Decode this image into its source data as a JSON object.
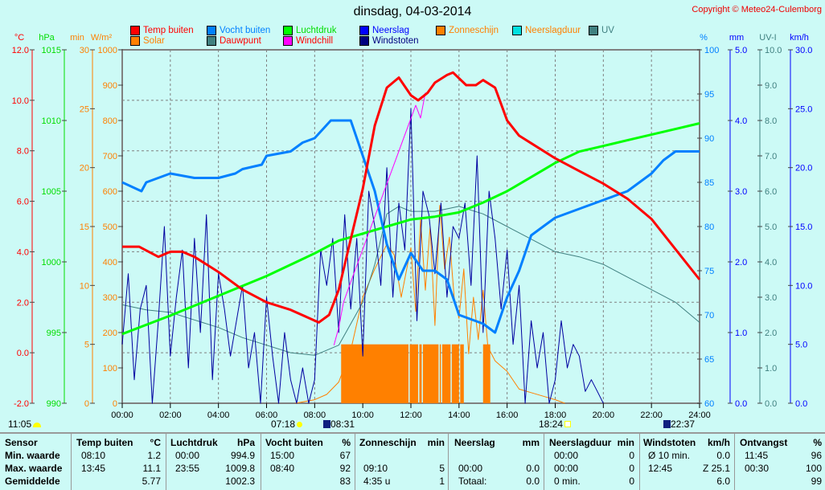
{
  "title": "dinsdag, 04-03-2014",
  "copyright": "Copyright © Meteo24-Culemborg",
  "legend": [
    {
      "label": "Temp buiten",
      "box": "#ff0000",
      "text": "#ff0000"
    },
    {
      "label": "Solar",
      "box": "#ff8000",
      "text": "#ff8000"
    },
    {
      "label": "Vocht buiten",
      "box": "#0080ff",
      "text": "#0080ff"
    },
    {
      "label": "Dauwpunt",
      "box": "#408080",
      "text": "#ff0000"
    },
    {
      "label": "Luchtdruk",
      "box": "#00ff00",
      "text": "#00dd00"
    },
    {
      "label": "Windchill",
      "box": "#ff00ff",
      "text": "#ff0000"
    },
    {
      "label": "Neerslag",
      "box": "#0000ff",
      "text": "#0000ff"
    },
    {
      "label": "Windstoten",
      "box": "#000080",
      "text": "#000080"
    },
    {
      "label": "Zonneschijn",
      "box": "#ff8000",
      "text": "#ff8000"
    },
    {
      "label": "Neerslagduur",
      "box": "#00e0e0",
      "text": "#ff8000"
    },
    {
      "label": "UV",
      "box": "#408080",
      "text": "#408080"
    }
  ],
  "events": {
    "moon_left": "11:05",
    "sunrise": "07:18",
    "moonrise": "08:31",
    "sunset": "18:24",
    "moonset": "22:37"
  },
  "chart_data": {
    "type": "line",
    "x_ticks": [
      "00:00",
      "02:00",
      "04:00",
      "06:00",
      "08:00",
      "10:00",
      "12:00",
      "14:00",
      "16:00",
      "18:00",
      "20:00",
      "22:00",
      "24:00"
    ],
    "xlim": [
      0,
      24
    ],
    "grid": true,
    "axes": [
      {
        "unit": "°C",
        "range": [
          -2,
          12
        ],
        "ticks": [
          "-2.0",
          "0.0",
          "2.0",
          "4.0",
          "6.0",
          "8.0",
          "10.0",
          "12.0"
        ],
        "color": "#ff0000",
        "side": "left"
      },
      {
        "unit": "hPa",
        "range": [
          990,
          1015
        ],
        "ticks": [
          "990",
          "995",
          "1000",
          "1005",
          "1010",
          "1015"
        ],
        "color": "#00dd00",
        "side": "left"
      },
      {
        "unit": "min",
        "range": [
          0,
          30
        ],
        "ticks": [
          "0",
          "5",
          "10",
          "15",
          "20",
          "25",
          "30"
        ],
        "color": "#ff8000",
        "side": "left"
      },
      {
        "unit": "W/m²",
        "range": [
          0,
          1000
        ],
        "ticks": [
          "0",
          "100",
          "200",
          "300",
          "400",
          "500",
          "600",
          "700",
          "800",
          "900",
          "1000"
        ],
        "color": "#ff8000",
        "side": "left"
      },
      {
        "unit": "%",
        "range": [
          60,
          100
        ],
        "ticks": [
          "60",
          "65",
          "70",
          "75",
          "80",
          "85",
          "90",
          "95",
          "100"
        ],
        "color": "#0080ff",
        "side": "right"
      },
      {
        "unit": "mm",
        "range": [
          0,
          5
        ],
        "ticks": [
          "0.0",
          "1.0",
          "2.0",
          "3.0",
          "4.0",
          "5.0"
        ],
        "color": "#0000ff",
        "side": "right"
      },
      {
        "unit": "UV-I",
        "range": [
          0,
          10
        ],
        "ticks": [
          "0.0",
          "1.0",
          "2.0",
          "3.0",
          "4.0",
          "5.0",
          "6.0",
          "7.0",
          "8.0",
          "9.0",
          "10.0"
        ],
        "color": "#408080",
        "side": "right"
      },
      {
        "unit": "km/h",
        "range": [
          0,
          30
        ],
        "ticks": [
          "0.0",
          "5.0",
          "10.0",
          "15.0",
          "20.0",
          "25.0",
          "30.0"
        ],
        "color": "#0000ff",
        "side": "right"
      }
    ],
    "series": [
      {
        "name": "Vocht buiten",
        "axis": 4,
        "color": "#0080ff",
        "width": 3,
        "x": [
          0,
          0.8,
          1,
          2,
          3,
          4,
          4.7,
          5,
          5.8,
          6,
          7,
          7.5,
          8,
          8.67,
          9.5,
          10,
          10.5,
          11,
          11.5,
          12,
          12.5,
          13,
          13.5,
          14,
          15,
          15.5,
          16,
          16.5,
          17,
          17.5,
          18,
          19,
          19.5,
          20,
          21,
          22,
          22.5,
          23,
          24
        ],
        "y": [
          85,
          84,
          85,
          86,
          85.5,
          85.5,
          86,
          86.5,
          87,
          88,
          88.5,
          89.5,
          90,
          92,
          92,
          88,
          84,
          78,
          74,
          77,
          75,
          75,
          74,
          70,
          69,
          68,
          72,
          75,
          79,
          80,
          81,
          82,
          82.5,
          83,
          84,
          86,
          87.5,
          88.5,
          88.5
        ]
      },
      {
        "name": "Luchtdruk",
        "axis": 1,
        "color": "#00ff00",
        "width": 3,
        "x": [
          0,
          2,
          4,
          6,
          8,
          9,
          10,
          11,
          12,
          13,
          14,
          15,
          16,
          17,
          18,
          19,
          20,
          21,
          22,
          23,
          24
        ],
        "y": [
          994.9,
          996.2,
          997.6,
          999.0,
          1000.6,
          1001.5,
          1002.0,
          1002.5,
          1003.0,
          1003.2,
          1003.5,
          1004.2,
          1005.0,
          1006.0,
          1007.0,
          1007.8,
          1008.2,
          1008.6,
          1009.0,
          1009.4,
          1009.8
        ]
      },
      {
        "name": "Temp buiten",
        "axis": 0,
        "color": "#ff0000",
        "width": 3,
        "x": [
          0,
          0.7,
          1.5,
          2,
          2.5,
          3,
          4,
          5,
          6,
          7,
          7.7,
          8.17,
          8.6,
          9,
          9.5,
          10,
          10.5,
          11,
          11.5,
          12,
          12.3,
          12.7,
          13,
          13.5,
          13.75,
          14.3,
          14.7,
          15,
          15.5,
          16,
          16.5,
          17,
          18,
          19,
          20,
          21,
          22,
          23,
          24
        ],
        "y": [
          4.2,
          4.2,
          3.8,
          4.0,
          4.0,
          3.8,
          3.2,
          2.5,
          2.0,
          1.7,
          1.4,
          1.2,
          1.5,
          2.5,
          4.5,
          6.5,
          9.0,
          10.5,
          10.9,
          10.2,
          10.0,
          10.3,
          10.7,
          11.0,
          11.1,
          10.6,
          10.6,
          10.8,
          10.5,
          9.2,
          8.6,
          8.3,
          7.7,
          7.2,
          6.7,
          6.1,
          5.3,
          4.1,
          2.9
        ]
      },
      {
        "name": "Dauwpunt",
        "axis": 0,
        "color": "#408080",
        "width": 1,
        "x": [
          0,
          1,
          2,
          3,
          4,
          5,
          6,
          7,
          8,
          9,
          10,
          10.5,
          11,
          11.5,
          12,
          13,
          14,
          15,
          16,
          17,
          18,
          19,
          20,
          21,
          22,
          23,
          24
        ],
        "y": [
          1.9,
          1.7,
          1.6,
          1.3,
          1.0,
          0.6,
          0.3,
          0.0,
          -0.1,
          0.3,
          2.0,
          3.5,
          5.5,
          5.8,
          5.6,
          5.6,
          5.8,
          5.5,
          5.0,
          4.5,
          4.0,
          3.8,
          3.5,
          3.0,
          2.5,
          2.0,
          1.2
        ]
      },
      {
        "name": "Windchill",
        "axis": 0,
        "color": "#ff00ff",
        "width": 1,
        "x": [
          8.8,
          9.0,
          9.2,
          9.5,
          12.2,
          12.4,
          12.6
        ],
        "y": [
          0.3,
          1.0,
          2.0,
          2.8,
          9.8,
          9.3,
          10.3
        ]
      },
      {
        "name": "Solar",
        "axis": 3,
        "color": "#ff8000",
        "width": 1,
        "x": [
          7.2,
          8,
          8.5,
          9,
          9.5,
          10,
          10.5,
          11,
          11.3,
          11.6,
          12,
          12.2,
          12.4,
          12.6,
          12.8,
          13,
          13.2,
          13.4,
          13.6,
          13.8,
          14,
          14.2,
          14.4,
          14.6,
          14.8,
          15,
          15.2,
          15.5,
          16,
          16.5,
          17,
          17.5,
          18,
          18.4
        ],
        "y": [
          0,
          10,
          25,
          60,
          150,
          300,
          380,
          450,
          420,
          300,
          440,
          260,
          520,
          320,
          500,
          220,
          560,
          380,
          470,
          300,
          240,
          380,
          140,
          300,
          180,
          320,
          160,
          120,
          90,
          40,
          30,
          20,
          10,
          0
        ]
      },
      {
        "name": "Windstoten",
        "axis": 7,
        "color": "#0000a0",
        "width": 1,
        "x": [
          0,
          0.25,
          0.5,
          0.75,
          1,
          1.25,
          1.5,
          1.75,
          2,
          2.25,
          2.5,
          2.75,
          3,
          3.25,
          3.5,
          3.75,
          4,
          4.25,
          4.5,
          4.75,
          5,
          5.25,
          5.5,
          5.75,
          6,
          6.25,
          6.5,
          6.75,
          7,
          7.25,
          7.5,
          7.75,
          8,
          8.25,
          8.5,
          8.75,
          9,
          9.25,
          9.5,
          9.75,
          10,
          10.25,
          10.5,
          10.75,
          11,
          11.25,
          11.5,
          11.75,
          12,
          12.25,
          12.5,
          12.75,
          13,
          13.25,
          13.5,
          13.75,
          14,
          14.25,
          14.5,
          14.75,
          15,
          15.25,
          15.5,
          15.75,
          16,
          16.25,
          16.5,
          16.75,
          17,
          17.25,
          17.5,
          17.75,
          18,
          18.25,
          18.5,
          18.75,
          19,
          19.25,
          19.5,
          19.75,
          20
        ],
        "y": [
          5,
          11,
          2,
          8,
          10,
          0,
          7,
          15,
          4,
          9,
          13,
          3,
          14,
          6,
          16,
          2,
          11,
          8,
          4,
          7,
          10,
          3,
          6,
          0,
          9,
          4,
          0,
          6,
          2,
          0,
          3,
          0,
          2,
          13,
          10,
          14,
          6,
          16,
          8,
          14,
          4,
          18,
          15,
          10,
          20,
          9,
          17,
          13,
          25,
          7,
          18,
          16,
          11,
          17,
          9,
          15,
          14,
          17,
          10,
          21,
          6,
          18,
          14,
          8,
          13,
          5,
          10,
          0,
          7,
          3,
          6,
          0,
          2,
          7,
          3,
          5,
          4,
          1,
          2,
          1,
          0
        ]
      }
    ],
    "sunshine_bars": {
      "name": "Zonneschijn",
      "axis": 2,
      "color": "#ff8000",
      "value": 5,
      "intervals": [
        [
          9.1,
          11.9
        ],
        [
          11.95,
          12.3
        ],
        [
          12.35,
          12.45
        ],
        [
          12.5,
          13.15
        ],
        [
          13.2,
          13.25
        ],
        [
          13.3,
          13.65
        ],
        [
          13.7,
          14.0
        ],
        [
          14.05,
          14.2
        ],
        [
          15.0,
          15.3
        ]
      ]
    }
  },
  "table": [
    {
      "header": "Sensor",
      "unit": "",
      "rows": [
        [
          "Min. waarde",
          ""
        ],
        [
          "Max. waarde",
          ""
        ],
        [
          "Gemiddelde",
          ""
        ]
      ]
    },
    {
      "header": "Temp buiten",
      "unit": "°C",
      "rows": [
        [
          "08:10",
          "1.2"
        ],
        [
          "13:45",
          "11.1"
        ],
        [
          "",
          "5.77"
        ]
      ]
    },
    {
      "header": "Luchtdruk",
      "unit": "hPa",
      "rows": [
        [
          "00:00",
          "994.9"
        ],
        [
          "23:55",
          "1009.8"
        ],
        [
          "",
          "1002.3"
        ]
      ]
    },
    {
      "header": "Vocht buiten",
      "unit": "%",
      "rows": [
        [
          "15:00",
          "67"
        ],
        [
          "08:40",
          "92"
        ],
        [
          "",
          "83"
        ]
      ]
    },
    {
      "header": "Zonneschijn",
      "unit": "min",
      "rows": [
        [
          "",
          ""
        ],
        [
          "09:10",
          "5"
        ],
        [
          "4:35 u",
          "1"
        ]
      ]
    },
    {
      "header": "Neerslag",
      "unit": "mm",
      "rows": [
        [
          "",
          ""
        ],
        [
          "00:00",
          "0.0"
        ],
        [
          "Totaal:",
          "0.0"
        ]
      ]
    },
    {
      "header": "Neerslagduur",
      "unit": "min",
      "rows": [
        [
          "00:00",
          "0"
        ],
        [
          "00:00",
          "0"
        ],
        [
          "0 min.",
          "0"
        ]
      ]
    },
    {
      "header": "Windstoten",
      "unit": "km/h",
      "rows": [
        [
          "Ø 10 min.",
          "0.0"
        ],
        [
          "12:45",
          "Z 25.1"
        ],
        [
          "",
          "6.0"
        ]
      ]
    },
    {
      "header": "Ontvangst",
      "unit": "%",
      "rows": [
        [
          "11:45",
          "96"
        ],
        [
          "00:30",
          "100"
        ],
        [
          "",
          "99"
        ]
      ]
    }
  ]
}
